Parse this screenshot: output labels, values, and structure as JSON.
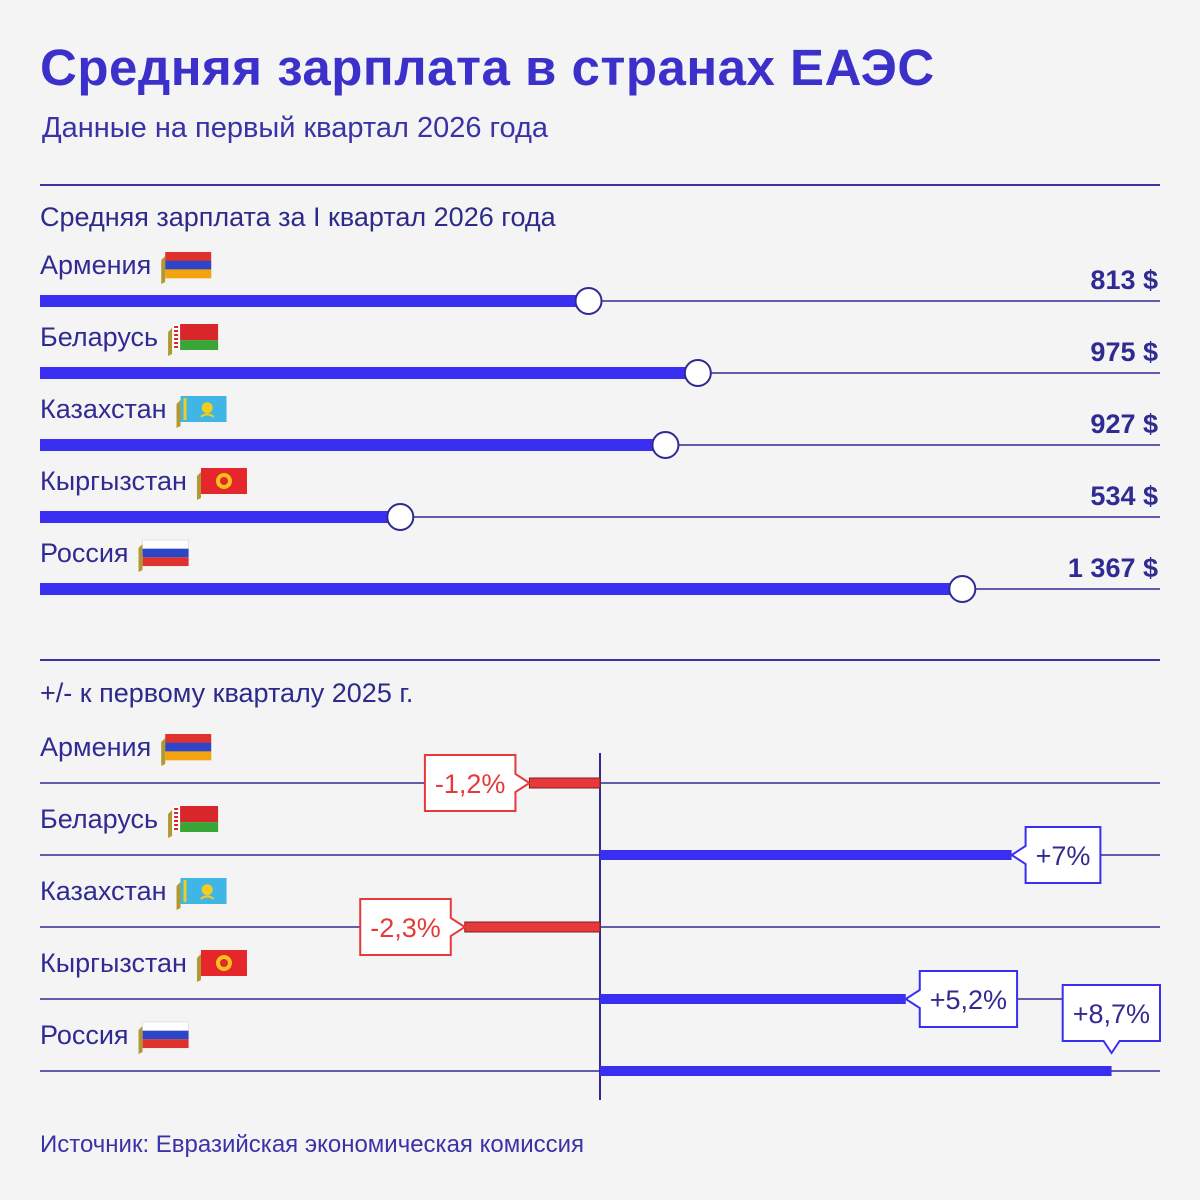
{
  "title": "Средняя зарплата в странах ЕАЭС",
  "subtitle": "Данные на первый квартал 2026 года",
  "source": "Источник: Евразийская экономическая комиссия",
  "colors": {
    "accent": "#3a2ff0",
    "negative": "#e53a3a",
    "text": "#2f2b93",
    "line": "#2f2b93"
  },
  "chart_data": [
    {
      "type": "bar",
      "title": "Средняя зарплата за I квартал 2026 года",
      "categories": [
        "Армения",
        "Беларусь",
        "Казахстан",
        "Кыргызстан",
        "Россия"
      ],
      "flags": [
        "armenia-flag",
        "belarus-flag",
        "kazakhstan-flag",
        "kyrgyzstan-flag",
        "russia-flag"
      ],
      "values": [
        813,
        975,
        927,
        534,
        1367
      ],
      "value_labels": [
        "813 $",
        "975 $",
        "927 $",
        "534 $",
        "1 367 $"
      ],
      "unit": "$",
      "xlim": [
        0,
        1660
      ]
    },
    {
      "type": "bar",
      "title": "+/- к первому кварталу 2025 г.",
      "categories": [
        "Армения",
        "Беларусь",
        "Казахстан",
        "Кыргызстан",
        "Россия"
      ],
      "flags": [
        "armenia-flag",
        "belarus-flag",
        "kazakhstan-flag",
        "kyrgyzstan-flag",
        "russia-flag"
      ],
      "values": [
        -1.2,
        7,
        -2.3,
        5.2,
        8.7
      ],
      "value_labels": [
        "-1,2%",
        "+7%",
        "-2,3%",
        "+5,2%",
        "+8,7%"
      ],
      "unit": "%"
    }
  ]
}
